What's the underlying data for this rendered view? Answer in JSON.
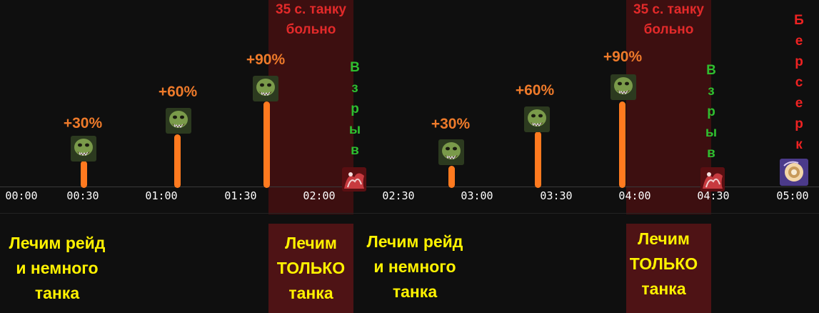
{
  "danger_zones": [
    {
      "label": "35 с. танку\nбольно",
      "phase_label": "Лечим\nТОЛЬКО\nтанка"
    },
    {
      "label": "35 с. танку\nбольно",
      "phase_label": "Лечим\nТОЛЬКО\nтанка"
    }
  ],
  "raid_phases": [
    {
      "label": "Лечим рейд\nи немного\nтанка"
    },
    {
      "label": "Лечим рейд\nи немного\nтанка"
    }
  ],
  "ticks": [
    "00:00",
    "00:30",
    "01:00",
    "01:30",
    "02:00",
    "02:30",
    "03:00",
    "03:30",
    "04:00",
    "04:30",
    "05:00"
  ],
  "stacks": [
    {
      "time": "00:30",
      "label": "+30%",
      "value": 30
    },
    {
      "time": "01:00",
      "label": "+60%",
      "value": 60
    },
    {
      "time": "01:30",
      "label": "+90%",
      "value": 90
    },
    {
      "time": "03:00",
      "label": "+30%",
      "value": 30
    },
    {
      "time": "03:30",
      "label": "+60%",
      "value": 60
    },
    {
      "time": "04:00",
      "label": "+90%",
      "value": 90
    }
  ],
  "explosions": [
    {
      "time": "02:00",
      "label": "В\nз\nр\nы\nв"
    },
    {
      "time": "04:30",
      "label": "В\nз\nр\nы\nв"
    }
  ],
  "berserk": {
    "time": "05:00",
    "label": "Б\nе\nр\nс\nе\nр\nк"
  },
  "colors": {
    "stack_label": "#ee7a2a",
    "bar": "#ff7a1f",
    "danger": "#e32a2a",
    "explosion": "#2fbe2f",
    "phase": "#fff200"
  }
}
